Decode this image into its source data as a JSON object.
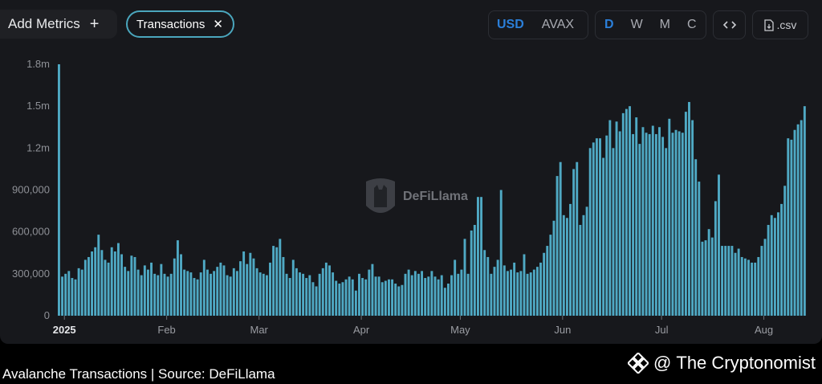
{
  "toolbar": {
    "add_metrics_label": "Add Metrics",
    "add_icon": "plus-icon",
    "chip_label": "Transactions",
    "chip_close_icon": "close-icon",
    "currency_options": [
      "USD",
      "AVAX"
    ],
    "currency_selected": "USD",
    "period_options": [
      "D",
      "W",
      "M",
      "C"
    ],
    "period_selected": "D",
    "embed_icon": "code-icon",
    "csv_icon": "file-icon",
    "csv_label": ".csv"
  },
  "watermark": {
    "text": "DeFiLlama",
    "icon": "llama-logo-icon"
  },
  "caption": "Avalanche Transactions | Source: DeFiLlama",
  "brand": {
    "icon": "binance-diamond-icon",
    "at": "@",
    "name": "The Cryptonomist"
  },
  "colors": {
    "bar": "#4fa9c4",
    "accent": "#2b7fd9",
    "chip_border": "#4aa6bd",
    "background": "#17181c"
  },
  "chart_data": {
    "type": "bar",
    "title": "",
    "xlabel": "",
    "ylabel": "",
    "ylim": [
      0,
      1800000
    ],
    "y_ticks": [
      0,
      300000,
      600000,
      900000,
      1200000,
      1500000,
      1800000
    ],
    "y_tick_labels": [
      "0",
      "300,000",
      "600,000",
      "900,000",
      "1.2m",
      "1.5m",
      "1.8m"
    ],
    "x_tick_labels": [
      {
        "label": "2025",
        "day": 2,
        "bold": true
      },
      {
        "label": "Feb",
        "day": 33
      },
      {
        "label": "Mar",
        "day": 61
      },
      {
        "label": "Apr",
        "day": 92
      },
      {
        "label": "May",
        "day": 122
      },
      {
        "label": "Jun",
        "day": 153
      },
      {
        "label": "Jul",
        "day": 183
      },
      {
        "label": "Aug",
        "day": 214
      }
    ],
    "grid": false,
    "series": [
      {
        "values": [
          1800000,
          280000,
          300000,
          320000,
          270000,
          260000,
          340000,
          330000,
          400000,
          420000,
          460000,
          490000,
          580000,
          470000,
          400000,
          380000,
          490000,
          460000,
          520000,
          440000,
          350000,
          320000,
          430000,
          420000,
          330000,
          290000,
          360000,
          330000,
          380000,
          300000,
          290000,
          370000,
          300000,
          280000,
          300000,
          410000,
          540000,
          440000,
          330000,
          320000,
          310000,
          270000,
          260000,
          310000,
          400000,
          330000,
          300000,
          320000,
          350000,
          380000,
          360000,
          290000,
          280000,
          340000,
          320000,
          390000,
          460000,
          370000,
          450000,
          410000,
          340000,
          310000,
          300000,
          290000,
          380000,
          500000,
          490000,
          550000,
          420000,
          300000,
          270000,
          400000,
          340000,
          310000,
          300000,
          270000,
          290000,
          240000,
          210000,
          300000,
          340000,
          380000,
          360000,
          310000,
          250000,
          230000,
          240000,
          260000,
          280000,
          260000,
          180000,
          300000,
          270000,
          260000,
          330000,
          370000,
          280000,
          280000,
          240000,
          250000,
          260000,
          260000,
          230000,
          210000,
          220000,
          300000,
          330000,
          290000,
          320000,
          300000,
          320000,
          270000,
          280000,
          320000,
          280000,
          260000,
          290000,
          200000,
          230000,
          290000,
          400000,
          300000,
          330000,
          550000,
          300000,
          610000,
          650000,
          850000,
          850000,
          470000,
          420000,
          300000,
          350000,
          400000,
          900000,
          360000,
          320000,
          330000,
          380000,
          310000,
          320000,
          440000,
          300000,
          310000,
          330000,
          350000,
          380000,
          450000,
          500000,
          580000,
          680000,
          1000000,
          1100000,
          720000,
          700000,
          800000,
          1050000,
          1100000,
          650000,
          720000,
          780000,
          1200000,
          1240000,
          1270000,
          1270000,
          1130000,
          1290000,
          1400000,
          1200000,
          1390000,
          1320000,
          1450000,
          1480000,
          1500000,
          1300000,
          1420000,
          1230000,
          1350000,
          1310000,
          1300000,
          1360000,
          1300000,
          1350000,
          1280000,
          1200000,
          1410000,
          1310000,
          1330000,
          1320000,
          1310000,
          1460000,
          1530000,
          1400000,
          1120000,
          960000,
          530000,
          540000,
          620000,
          560000,
          820000,
          1010000,
          500000,
          500000,
          500000,
          500000,
          450000,
          480000,
          420000,
          410000,
          400000,
          380000,
          380000,
          420000,
          500000,
          550000,
          650000,
          720000,
          700000,
          740000,
          800000,
          930000,
          1270000,
          1260000,
          1330000,
          1370000,
          1400000,
          1500000
        ]
      }
    ]
  }
}
